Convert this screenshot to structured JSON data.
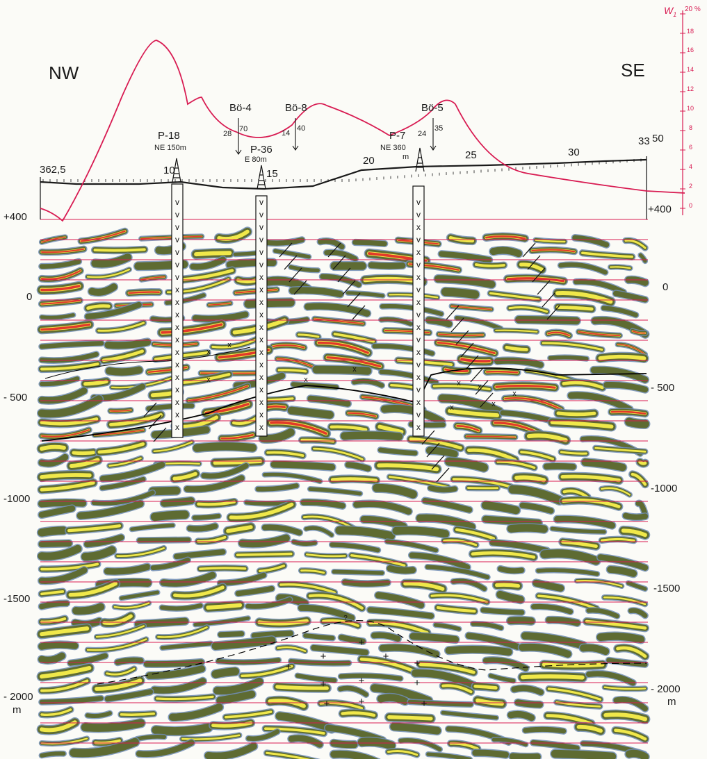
{
  "orientation": {
    "left": "NW",
    "right": "SE"
  },
  "wells_projected": [
    {
      "name": "P-18",
      "offset": "NE 150m"
    },
    {
      "name": "P-36",
      "offset": "E 80m"
    },
    {
      "name": "P-7",
      "offset": "NE 360",
      "offset_unit": "m"
    }
  ],
  "wells_on_line": [
    {
      "name": "Bö-4",
      "left_value": "28",
      "right_value": "70"
    },
    {
      "name": "Bö-8",
      "left_value": "14",
      "right_value": "40"
    },
    {
      "name": "Bö-5",
      "left_value": "24",
      "right_value": "35"
    }
  ],
  "station_axis": {
    "start_label": "362,5",
    "tick_labels": [
      "10",
      "15",
      "20",
      "25",
      "30"
    ],
    "end_label": "33",
    "end_elevation_label": "50"
  },
  "w1_axis": {
    "title": "W",
    "title_subscript": "1",
    "unit": "20 %",
    "tick_labels": [
      "18",
      "16",
      "14",
      "12",
      "10",
      "8",
      "6",
      "4",
      "2",
      "0"
    ],
    "line_color": "#d81b52"
  },
  "depth_axis": {
    "left_labels": [
      "+400",
      "0",
      "- 500",
      "-1000",
      "-1500",
      "- 2000"
    ],
    "right_labels": [
      "+400",
      "0",
      "- 500",
      "-1000",
      "-1500",
      "- 2000"
    ],
    "unit": "m"
  },
  "symbols": {
    "volcanic": "v",
    "cross": "x",
    "basement": "+",
    "query": "?"
  },
  "colors": {
    "grid_line": "#d81b52",
    "wiggle_blue": "#6e8cb4",
    "wiggle_olive": "#5e6b32",
    "wiggle_yellow": "#f0e84a",
    "wiggle_red": "#e23a2a",
    "topography": "#1a1a1a"
  }
}
